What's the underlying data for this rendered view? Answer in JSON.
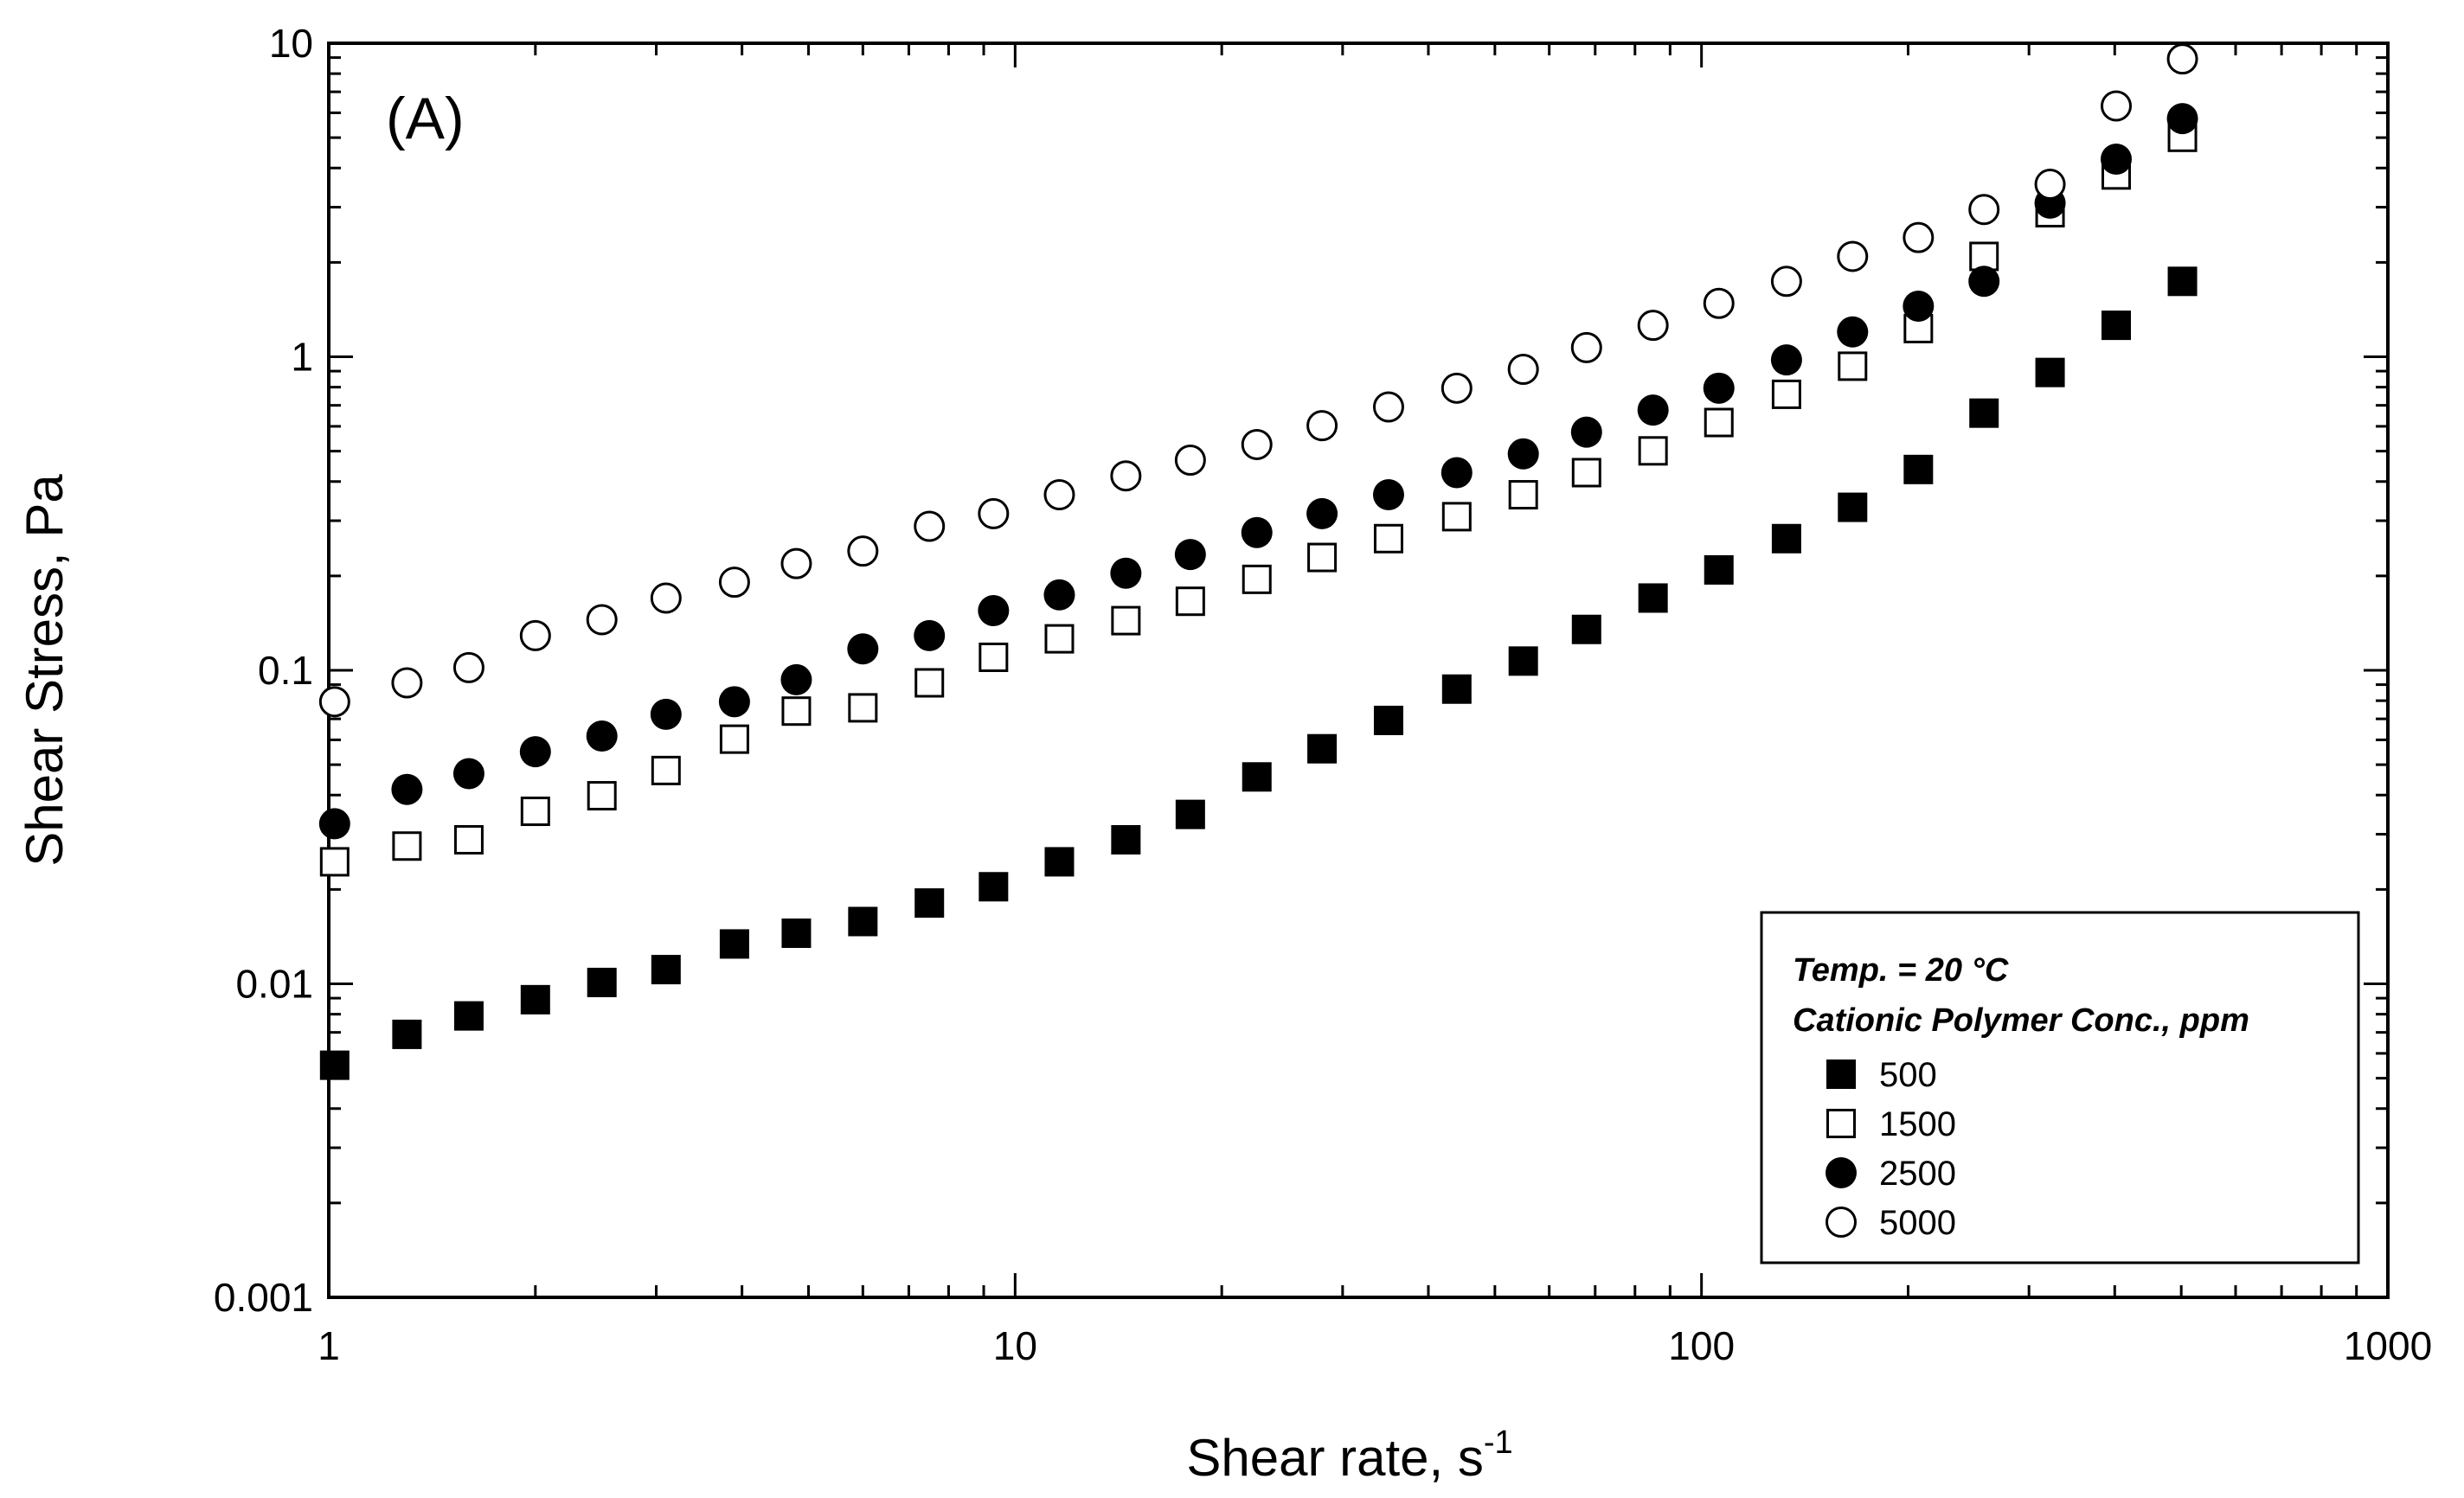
{
  "chart_data": {
    "type": "scatter",
    "panel_label": "(A)",
    "xlabel": "Shear rate, s",
    "xlabel_superscript": "-1",
    "ylabel": "Shear Stress, Pa",
    "x_scale": "log",
    "y_scale": "log",
    "xlim": [
      1,
      1000
    ],
    "ylim": [
      0.001,
      10
    ],
    "x_ticks": [
      {
        "value": 1,
        "label": "1"
      },
      {
        "value": 10,
        "label": "10"
      },
      {
        "value": 100,
        "label": "100"
      },
      {
        "value": 1000,
        "label": "1000"
      }
    ],
    "y_ticks": [
      {
        "value": 0.001,
        "label": "0.001"
      },
      {
        "value": 0.01,
        "label": "0.01"
      },
      {
        "value": 0.1,
        "label": "0.1"
      },
      {
        "value": 1,
        "label": "1"
      },
      {
        "value": 10,
        "label": "10"
      }
    ],
    "grid": false,
    "legend": {
      "placement": "bottom-right",
      "lines": [
        "Temp. = 20 °C",
        "Cationic Polymer Conc., ppm"
      ]
    },
    "x": [
      1.02,
      1.3,
      1.6,
      2.0,
      2.5,
      3.1,
      3.9,
      4.8,
      6.0,
      7.5,
      9.3,
      11.6,
      14.5,
      18.0,
      22.5,
      28,
      35,
      44,
      55,
      68,
      85,
      106,
      133,
      166,
      207,
      258,
      322,
      402,
      502
    ],
    "series": [
      {
        "name": "500",
        "marker": "filled-square",
        "values": [
          0.0055,
          0.0069,
          0.0079,
          0.0089,
          0.0101,
          0.0111,
          0.0134,
          0.0145,
          0.0158,
          0.0181,
          0.0204,
          0.0245,
          0.0288,
          0.0347,
          0.0457,
          0.0562,
          0.0692,
          0.0871,
          0.107,
          0.135,
          0.17,
          0.209,
          0.263,
          0.331,
          0.437,
          0.661,
          0.891,
          1.26,
          1.74
        ]
      },
      {
        "name": "1500",
        "marker": "open-square",
        "values": [
          0.0245,
          0.0275,
          0.0288,
          0.0355,
          0.0398,
          0.0479,
          0.0603,
          0.0741,
          0.0759,
          0.0912,
          0.11,
          0.126,
          0.144,
          0.166,
          0.195,
          0.229,
          0.263,
          0.309,
          0.363,
          0.427,
          0.501,
          0.617,
          0.759,
          0.933,
          1.23,
          2.09,
          2.88,
          3.8,
          5.01
        ]
      },
      {
        "name": "2500",
        "marker": "filled-circle",
        "values": [
          0.0324,
          0.0417,
          0.0468,
          0.055,
          0.0617,
          0.0724,
          0.0794,
          0.0933,
          0.117,
          0.129,
          0.155,
          0.174,
          0.204,
          0.234,
          0.275,
          0.316,
          0.363,
          0.427,
          0.49,
          0.575,
          0.676,
          0.794,
          0.977,
          1.2,
          1.45,
          1.74,
          3.09,
          4.27,
          5.75
        ]
      },
      {
        "name": "5000",
        "marker": "open-circle",
        "values": [
          0.0794,
          0.0912,
          0.102,
          0.129,
          0.145,
          0.17,
          0.191,
          0.219,
          0.24,
          0.288,
          0.316,
          0.363,
          0.417,
          0.468,
          0.525,
          0.603,
          0.692,
          0.794,
          0.912,
          1.07,
          1.26,
          1.48,
          1.74,
          2.09,
          2.4,
          2.95,
          3.55,
          6.31,
          8.91
        ]
      }
    ]
  }
}
